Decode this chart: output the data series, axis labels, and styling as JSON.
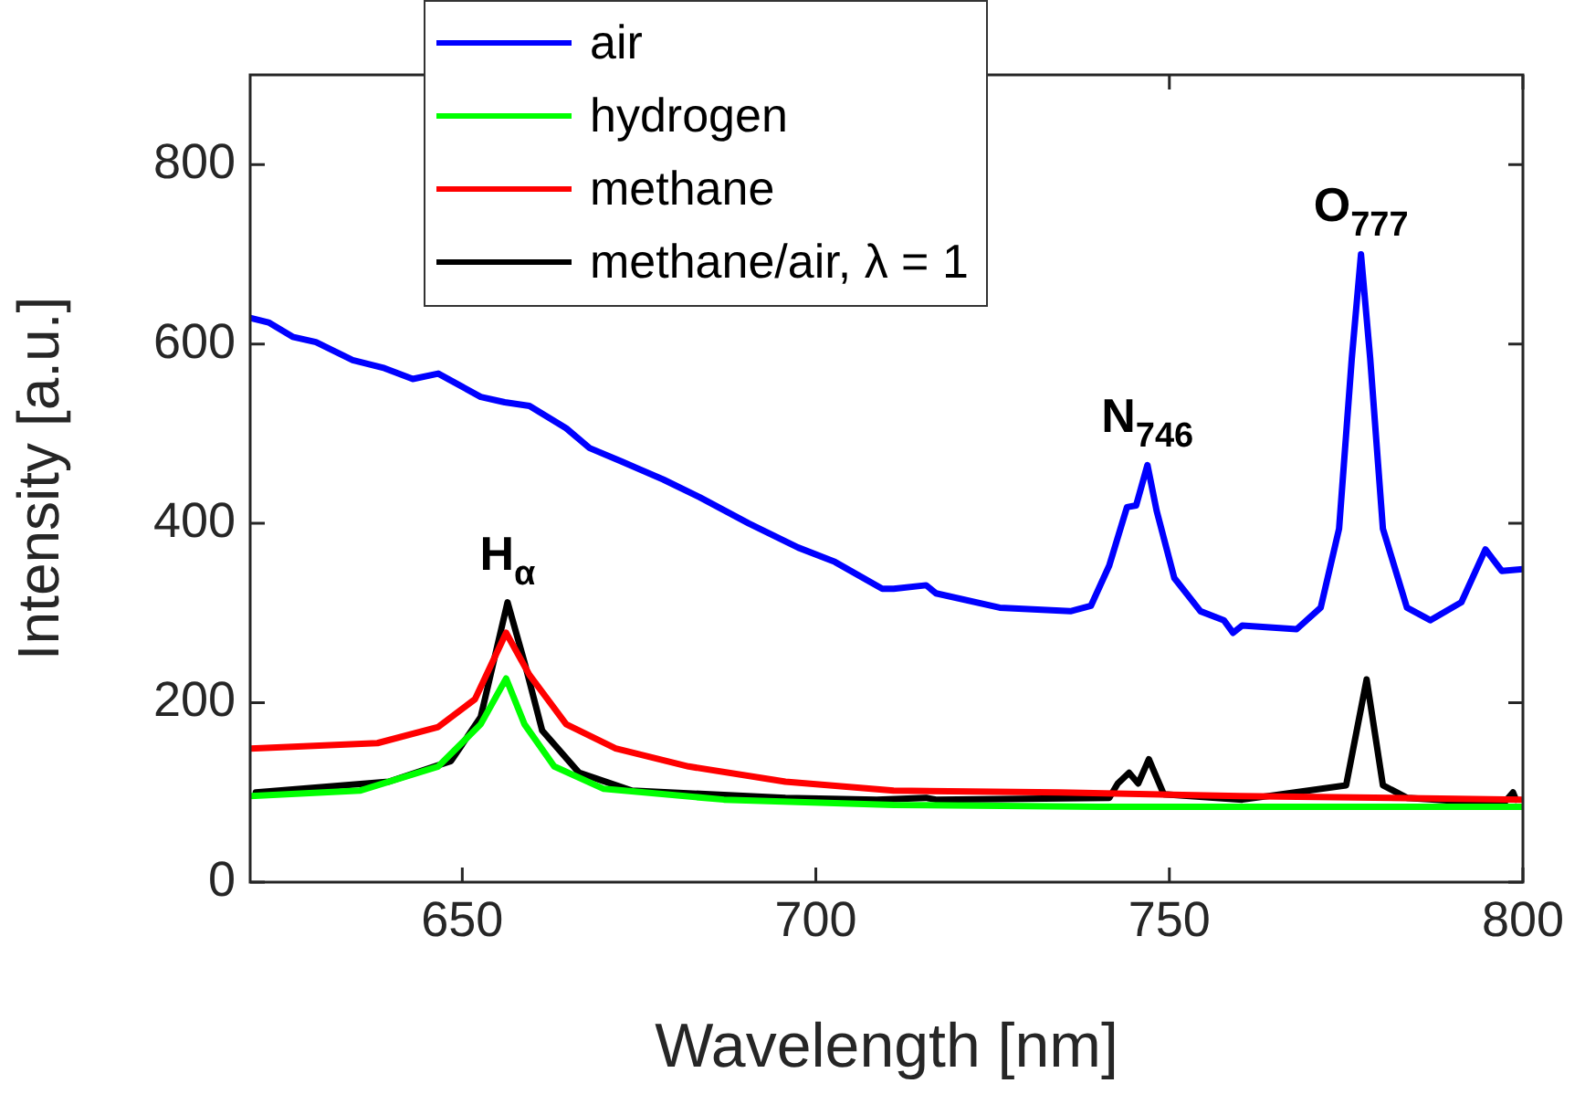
{
  "chart_data": {
    "type": "line",
    "xlabel": "Wavelength [nm]",
    "ylabel": "Intensity [a.u.]",
    "xlim": [
      620,
      800
    ],
    "xticks": [
      650,
      700,
      750,
      800
    ],
    "ylim": [
      0,
      900
    ],
    "yticks": [
      0,
      200,
      400,
      600,
      800
    ],
    "grid": false,
    "legend": "top left",
    "marker": "none",
    "line_style": "solid",
    "series": [
      {
        "name": "air",
        "color": "#0000ff",
        "x": [
          620,
          622.6,
          626,
          629.3,
          634.5,
          639,
          643,
          646.6,
          652.6,
          656,
          659.5,
          664.7,
          668,
          672.5,
          678.4,
          683.6,
          690.5,
          697.5,
          702.7,
          709.4,
          711,
          715.6,
          717,
          726,
          736,
          738.9,
          741.5,
          744,
          745.3,
          746.9,
          748.2,
          750.7,
          754.4,
          757.7,
          759,
          760.3,
          768,
          771.4,
          774,
          775.8,
          777.1,
          778.4,
          780.2,
          783.6,
          786.9,
          791.3,
          794.7,
          797,
          800
        ],
        "values": [
          629,
          624,
          608,
          602,
          582,
          573,
          561,
          567,
          541,
          535,
          531,
          506,
          484,
          469,
          449,
          429,
          400,
          373,
          357,
          327,
          327,
          331,
          322,
          306,
          302,
          308,
          353,
          418,
          420,
          465,
          414,
          339,
          302,
          292,
          278,
          286,
          282,
          306,
          394,
          584,
          700,
          584,
          394,
          306,
          292,
          312,
          371,
          347,
          349
        ]
      },
      {
        "name": "hydrogen",
        "color": "#00ff00",
        "x": [
          620,
          635.5,
          646.6,
          652.6,
          656.2,
          658.8,
          663,
          670,
          687,
          711,
          740,
          770,
          800
        ],
        "values": [
          96,
          102,
          129,
          176,
          227,
          176,
          129,
          104,
          92,
          86,
          84,
          84,
          84
        ]
      },
      {
        "name": "methane",
        "color": "#ff0000",
        "x": [
          620,
          638,
          646.6,
          651.8,
          656.2,
          659.5,
          664.7,
          671.7,
          682,
          695.7,
          711,
          734.5,
          760,
          800
        ],
        "values": [
          149,
          155,
          173,
          204,
          278,
          231,
          176,
          149,
          129,
          112,
          102,
          100,
          96,
          92
        ]
      },
      {
        "name": "methane/air, λ = 1",
        "color": "#000000",
        "x": [
          620.8,
          639.6,
          648.4,
          652.6,
          656.4,
          658.8,
          661.3,
          666.5,
          674,
          695.7,
          708.6,
          715.6,
          717,
          741.5,
          742.7,
          744.3,
          745.6,
          747.1,
          749.2,
          760.3,
          775,
          777.9,
          780.2,
          783.6,
          791.3,
          797.3,
          798.6,
          799
        ],
        "values": [
          100,
          112,
          135,
          184,
          312,
          245,
          169,
          122,
          102,
          94,
          92,
          94,
          92,
          94,
          110,
          122,
          110,
          137,
          98,
          92,
          108,
          226,
          108,
          94,
          90,
          88,
          100,
          92
        ]
      }
    ],
    "annotations": [
      {
        "text": "H$_{α}$",
        "x": 656.4,
        "y": 312
      },
      {
        "text": "N$_{746}$",
        "x": 746.9,
        "y": 465
      },
      {
        "text": "O$_{777}$",
        "x": 777.1,
        "y": 700
      }
    ]
  }
}
